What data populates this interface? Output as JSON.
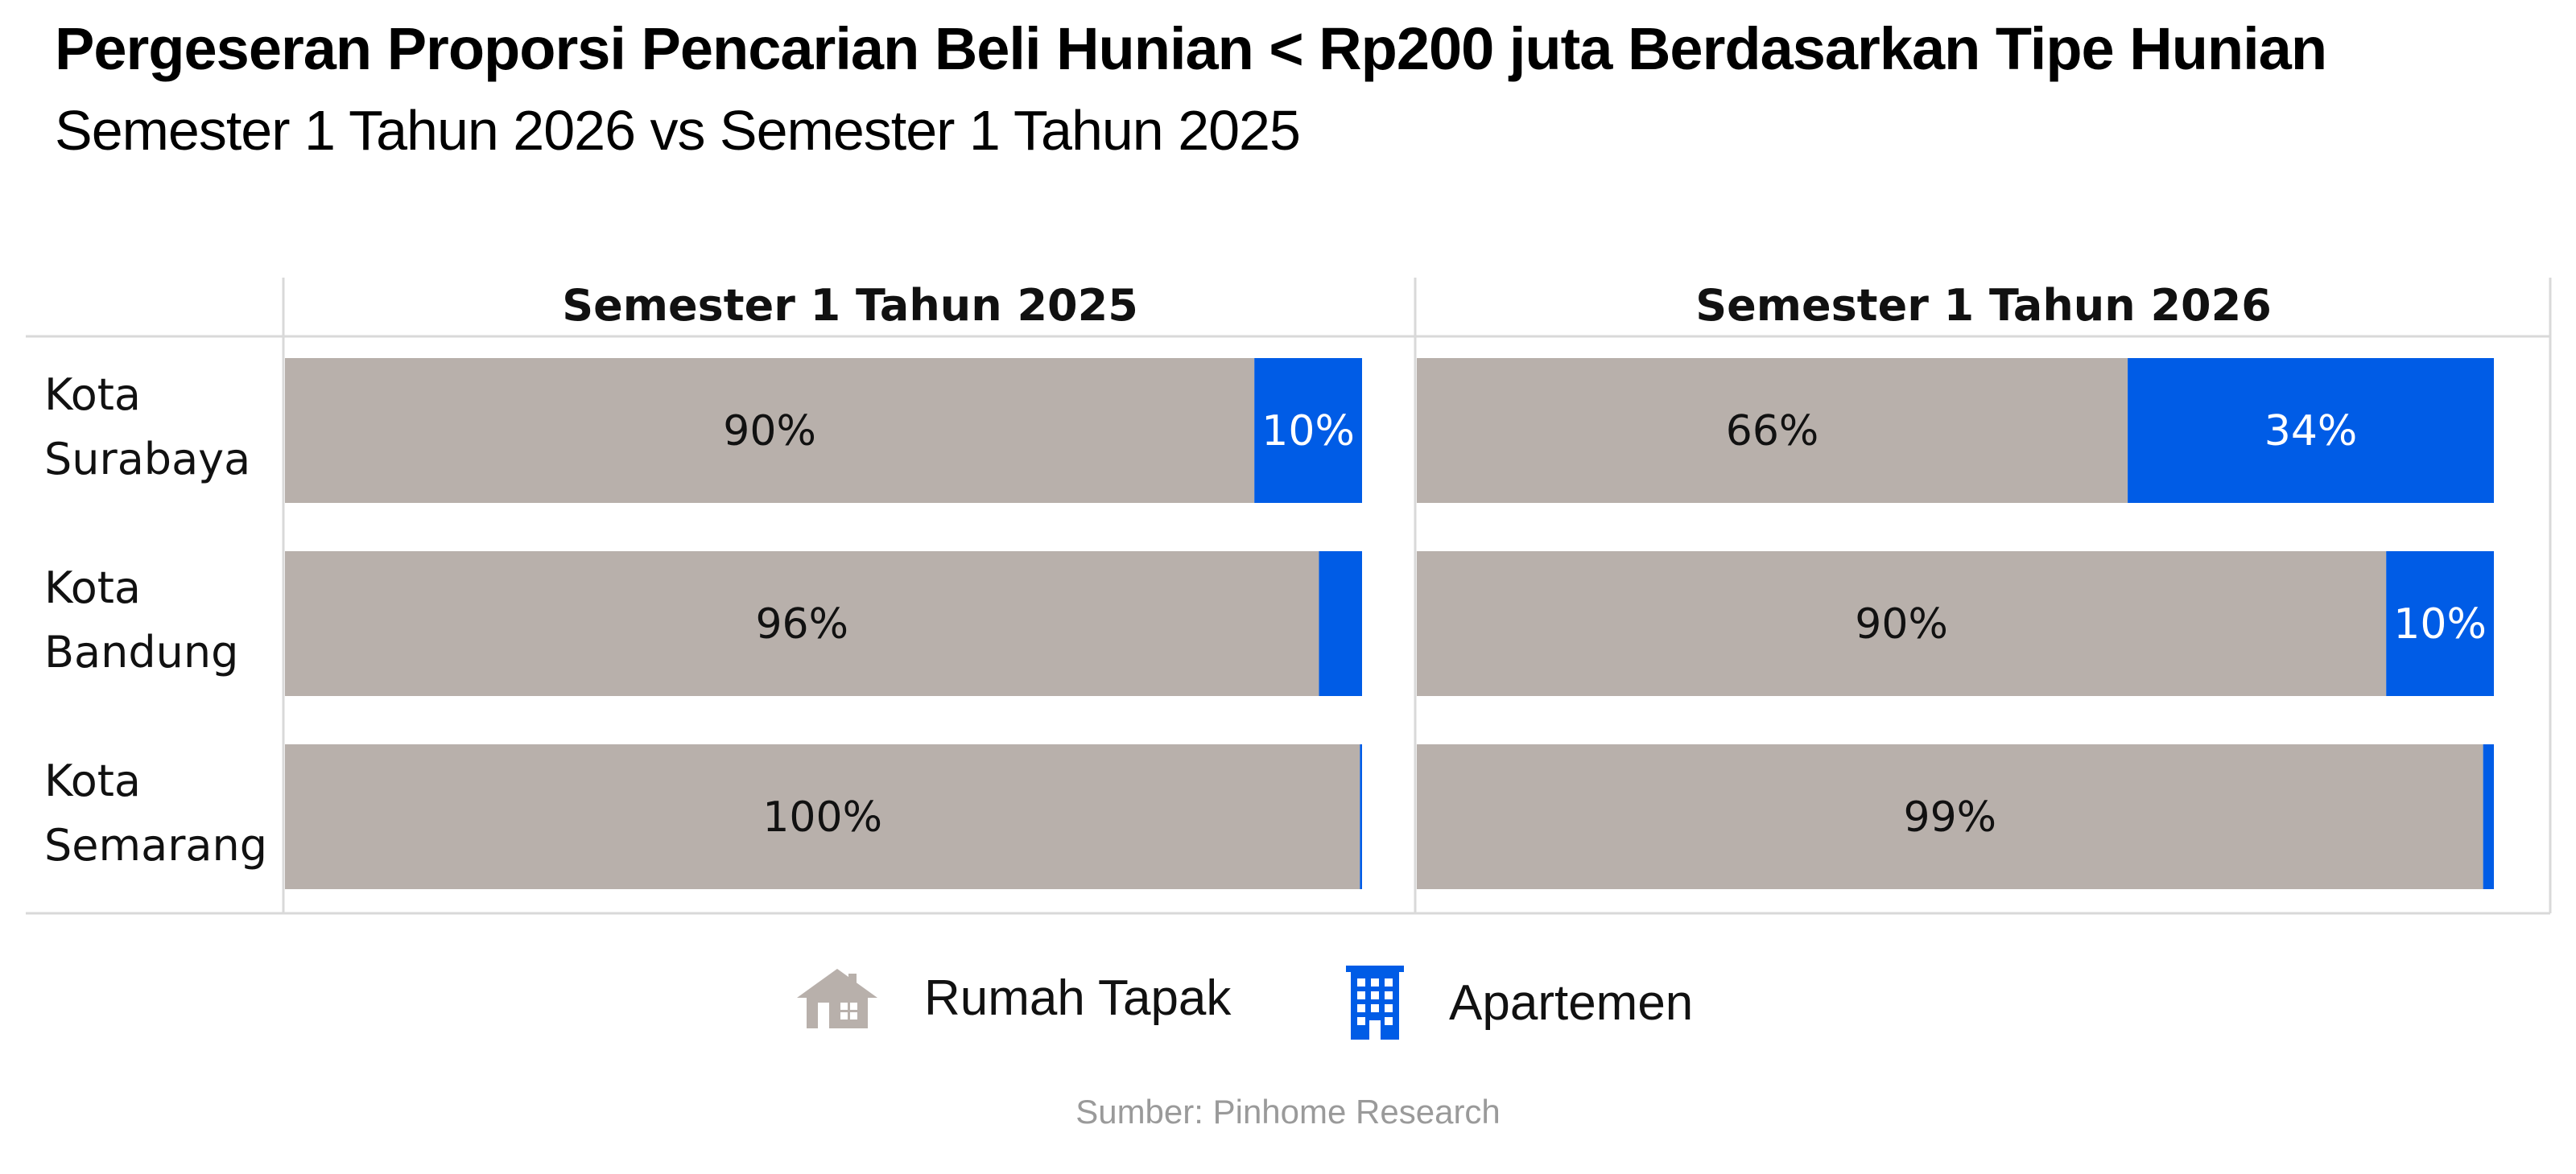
{
  "header": {
    "title": "Pergeseran Proporsi  Pencarian Beli Hunian < Rp200 juta Berdasarkan Tipe Hunian",
    "subtitle": "Semester 1 Tahun 2026 vs Semester 1 Tahun 2025"
  },
  "colors": {
    "rumah_tapak": "#b8b0ab",
    "apartemen": "#005ce6",
    "grid": "#d9d9d9"
  },
  "chart_data": {
    "type": "bar",
    "orientation": "horizontal-stacked-100",
    "categories": [
      [
        "Kota",
        "Surabaya"
      ],
      [
        "Kota",
        "Bandung"
      ],
      [
        "Kota",
        "Semarang"
      ]
    ],
    "panels": [
      {
        "title": "Semester 1 Tahun 2025",
        "series": [
          {
            "name": "Rumah Tapak",
            "values": [
              90,
              96,
              99.8
            ],
            "labels": [
              "90%",
              "96%",
              "100%"
            ]
          },
          {
            "name": "Apartemen",
            "values": [
              10,
              4,
              0.2
            ],
            "labels": [
              "10%",
              "",
              ""
            ]
          }
        ]
      },
      {
        "title": "Semester 1 Tahun 2026",
        "series": [
          {
            "name": "Rumah Tapak",
            "values": [
              66,
              90,
              99
            ],
            "labels": [
              "66%",
              "90%",
              "99%"
            ]
          },
          {
            "name": "Apartemen",
            "values": [
              34,
              10,
              1
            ],
            "labels": [
              "34%",
              "10%",
              ""
            ]
          }
        ]
      }
    ],
    "xlim": [
      0,
      100
    ],
    "grid": false,
    "legend_position": "bottom"
  },
  "legend": [
    {
      "label": "Rumah Tapak",
      "icon": "house-icon"
    },
    {
      "label": "Apartemen",
      "icon": "apartment-building-icon"
    }
  ],
  "source": "Sumber: Pinhome Research"
}
